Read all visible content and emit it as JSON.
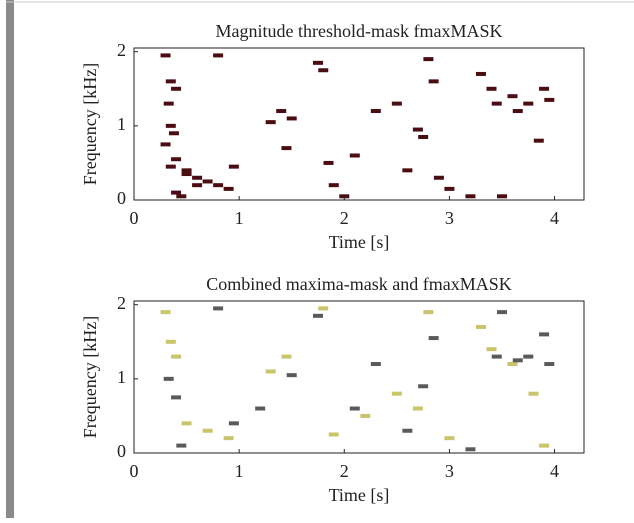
{
  "chart_data": [
    {
      "type": "scatter",
      "title": "Magnitude threshold-mask fmaxMASK",
      "x_label": "Time [s]",
      "y_label": "Frequency [kHz]",
      "xlim": [
        0,
        4.28
      ],
      "ylim": [
        0,
        2.05
      ],
      "xticks": [
        0,
        1,
        2,
        3,
        4
      ],
      "yticks": [
        0,
        1,
        2
      ],
      "series": [
        {
          "color": "#4a0d12",
          "x": [
            0.3,
            0.35,
            0.4,
            0.33,
            0.38,
            0.3,
            0.4,
            0.35,
            0.5,
            0.6,
            0.7,
            0.8,
            0.9,
            0.4,
            0.45,
            0.5,
            0.6,
            0.35,
            0.95,
            1.3,
            1.4,
            1.45,
            1.5,
            1.75,
            1.8,
            1.85,
            1.9,
            2.1,
            2.3,
            2.5,
            2.6,
            2.7,
            2.75,
            2.8,
            2.85,
            2.9,
            3.0,
            3.3,
            3.4,
            3.45,
            3.6,
            3.65,
            3.75,
            3.85,
            3.9,
            3.95,
            3.5,
            3.2,
            2.0,
            0.8
          ],
          "values": [
            1.95,
            1.6,
            1.5,
            1.3,
            0.9,
            0.75,
            0.55,
            0.45,
            0.35,
            0.3,
            0.25,
            0.2,
            0.15,
            0.1,
            0.05,
            0.4,
            0.2,
            1.0,
            0.45,
            1.05,
            1.2,
            0.7,
            1.1,
            1.85,
            1.75,
            0.5,
            0.2,
            0.6,
            1.2,
            1.3,
            0.4,
            0.95,
            0.85,
            1.9,
            1.6,
            0.3,
            0.15,
            1.7,
            1.5,
            1.3,
            1.4,
            1.2,
            1.3,
            0.8,
            1.5,
            1.35,
            0.05,
            0.05,
            0.05,
            1.95
          ]
        }
      ]
    },
    {
      "type": "scatter",
      "title": "Combined maxima-mask and fmaxMASK",
      "x_label": "Time [s]",
      "y_label": "Frequency [kHz]",
      "xlim": [
        0,
        4.28
      ],
      "ylim": [
        0,
        2.05
      ],
      "xticks": [
        0,
        1,
        2,
        3,
        4
      ],
      "yticks": [
        0,
        1,
        2
      ],
      "series": [
        {
          "color": "#c9c56a",
          "x": [
            0.3,
            0.35,
            0.4,
            0.5,
            0.7,
            0.9,
            1.3,
            1.45,
            1.8,
            1.9,
            2.2,
            2.5,
            2.7,
            2.8,
            3.0,
            3.3,
            3.4,
            3.6,
            3.8,
            3.9
          ],
          "values": [
            1.9,
            1.5,
            1.3,
            0.4,
            0.3,
            0.2,
            1.1,
            1.3,
            1.95,
            0.25,
            0.5,
            0.8,
            0.6,
            1.9,
            0.2,
            1.7,
            1.4,
            1.2,
            0.8,
            0.1
          ]
        },
        {
          "color": "#5a5a5a",
          "x": [
            0.33,
            0.4,
            0.45,
            0.8,
            0.95,
            1.2,
            1.5,
            1.75,
            2.1,
            2.3,
            2.6,
            2.75,
            2.85,
            3.2,
            3.45,
            3.5,
            3.65,
            3.75,
            3.9,
            3.95
          ],
          "values": [
            1.0,
            0.75,
            0.1,
            1.95,
            0.4,
            0.6,
            1.05,
            1.85,
            0.6,
            1.2,
            0.3,
            0.9,
            1.55,
            0.05,
            1.3,
            1.9,
            1.25,
            1.3,
            1.6,
            1.2
          ]
        }
      ]
    }
  ]
}
